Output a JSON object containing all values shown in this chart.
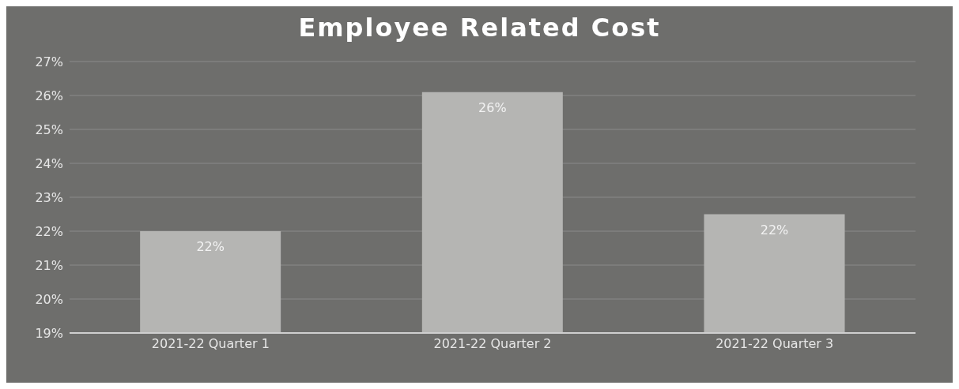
{
  "chart_data": {
    "type": "bar",
    "title": "Employee Related Cost",
    "categories": [
      "2021-22 Quarter 1",
      "2021-22 Quarter 2",
      "2021-22 Quarter 3"
    ],
    "values": [
      22.0,
      26.1,
      22.5
    ],
    "color": "#b5b5b3",
    "value_labels": [
      "22%",
      "26%",
      "22%"
    ],
    "ylim": [
      19,
      27
    ],
    "yticks": [
      {
        "value": 19,
        "label": "19%"
      },
      {
        "value": 20,
        "label": "20%"
      },
      {
        "value": 21,
        "label": "21%"
      },
      {
        "value": 22,
        "label": "22%"
      },
      {
        "value": 23,
        "label": "23%"
      },
      {
        "value": 24,
        "label": "24%"
      },
      {
        "value": 25,
        "label": "25%"
      },
      {
        "value": 26,
        "label": "26%"
      },
      {
        "value": 27,
        "label": "27%"
      }
    ],
    "grid": "y"
  }
}
